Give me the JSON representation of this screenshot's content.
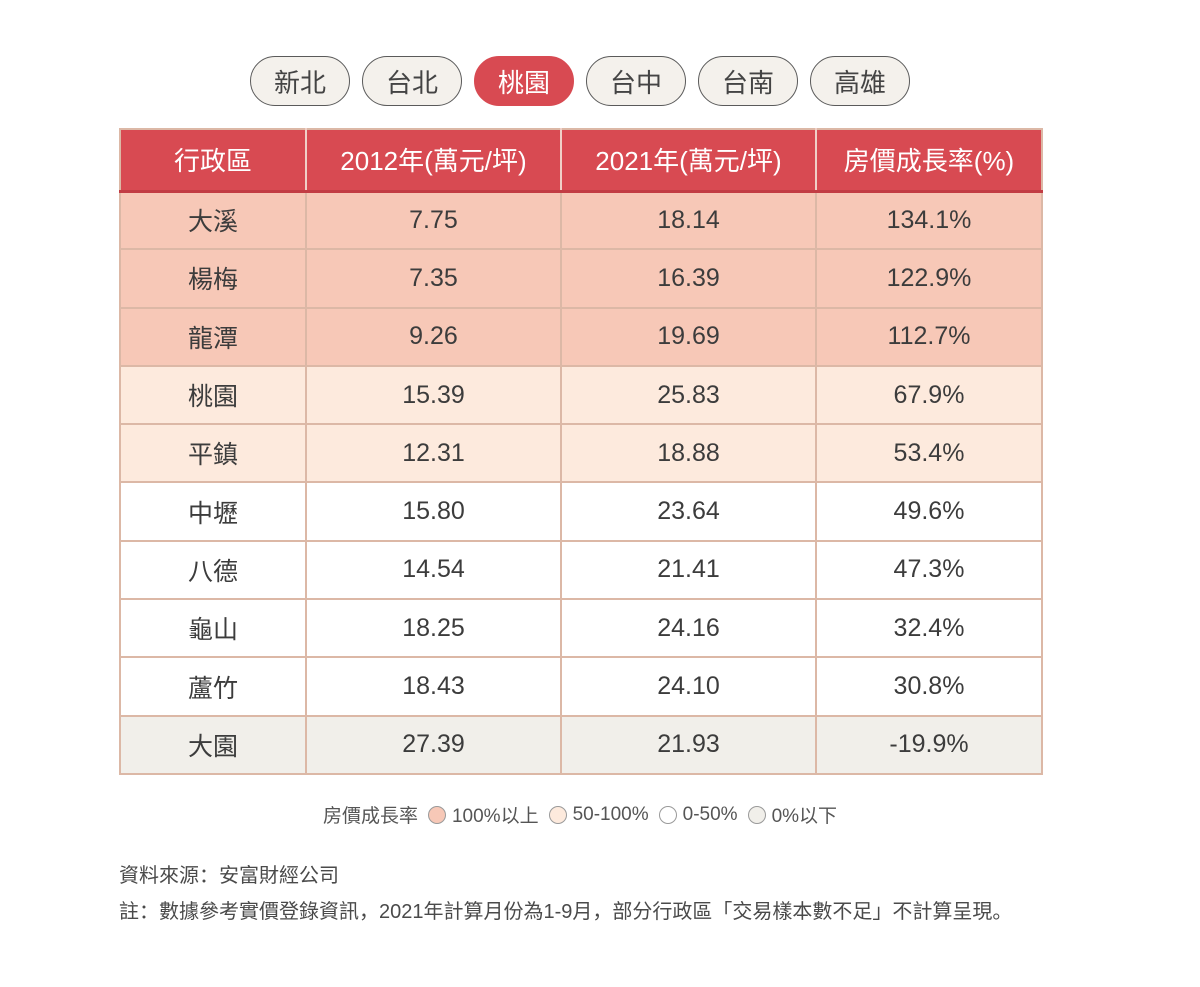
{
  "tabs": [
    {
      "label": "新北",
      "active": false
    },
    {
      "label": "台北",
      "active": false
    },
    {
      "label": "桃園",
      "active": true
    },
    {
      "label": "台中",
      "active": false
    },
    {
      "label": "台南",
      "active": false
    },
    {
      "label": "高雄",
      "active": false
    }
  ],
  "table": {
    "headers": [
      "行政區",
      "2012年(萬元/坪)",
      "2021年(萬元/坪)",
      "房價成長率(%)"
    ],
    "rows": [
      {
        "district": "大溪",
        "p2012": "7.75",
        "p2021": "18.14",
        "growth": "134.1%",
        "level": "high"
      },
      {
        "district": "楊梅",
        "p2012": "7.35",
        "p2021": "16.39",
        "growth": "122.9%",
        "level": "high"
      },
      {
        "district": "龍潭",
        "p2012": "9.26",
        "p2021": "19.69",
        "growth": "112.7%",
        "level": "high"
      },
      {
        "district": "桃園",
        "p2012": "15.39",
        "p2021": "25.83",
        "growth": "67.9%",
        "level": "mid"
      },
      {
        "district": "平鎮",
        "p2012": "12.31",
        "p2021": "18.88",
        "growth": "53.4%",
        "level": "mid"
      },
      {
        "district": "中壢",
        "p2012": "15.80",
        "p2021": "23.64",
        "growth": "49.6%",
        "level": "low"
      },
      {
        "district": "八德",
        "p2012": "14.54",
        "p2021": "21.41",
        "growth": "47.3%",
        "level": "low"
      },
      {
        "district": "龜山",
        "p2012": "18.25",
        "p2021": "24.16",
        "growth": "32.4%",
        "level": "low"
      },
      {
        "district": "蘆竹",
        "p2012": "18.43",
        "p2021": "24.10",
        "growth": "30.8%",
        "level": "low"
      },
      {
        "district": "大園",
        "p2012": "27.39",
        "p2021": "21.93",
        "growth": "-19.9%",
        "level": "neg"
      }
    ]
  },
  "legend": {
    "title": "房價成長率",
    "items": [
      {
        "label": "100%以上",
        "color": "#f7c8b7"
      },
      {
        "label": "50-100%",
        "color": "#fdeadd"
      },
      {
        "label": "0-50%",
        "color": "#ffffff"
      },
      {
        "label": "0%以下",
        "color": "#f1efea"
      }
    ]
  },
  "notes": {
    "source": "資料來源：安富財經公司",
    "note": "註：數據參考實價登錄資訊，2021年計算月份為1-9月，部分行政區「交易樣本數不足」不計算呈現。"
  },
  "colors": {
    "accent": "#d84a52",
    "border": "#dcb8a6"
  }
}
